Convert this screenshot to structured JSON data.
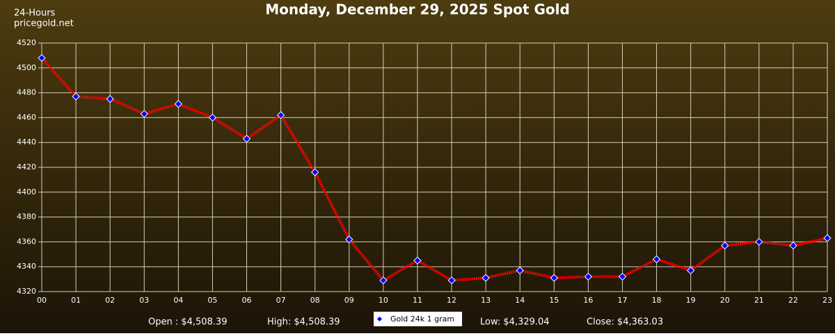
{
  "chart_data": {
    "type": "line",
    "title": "Monday, December 29, 2025 Spot Gold",
    "corner_text": [
      "24-Hours",
      "pricegold.net"
    ],
    "categories": [
      "00",
      "01",
      "02",
      "03",
      "04",
      "05",
      "06",
      "07",
      "08",
      "09",
      "10",
      "11",
      "12",
      "13",
      "14",
      "15",
      "16",
      "17",
      "18",
      "19",
      "20",
      "21",
      "22",
      "23"
    ],
    "series": [
      {
        "name": "Gold 24k 1 gram",
        "color": "#ff0000",
        "marker_color": "#0000ff",
        "values": [
          4508,
          4477,
          4475,
          4463,
          4471,
          4460,
          4443,
          4462,
          4416,
          4362,
          4329,
          4345,
          4329,
          4331,
          4337,
          4331,
          4332,
          4332,
          4346,
          4337,
          4357,
          4360,
          4357,
          4363
        ]
      }
    ],
    "ylim": [
      4320,
      4520
    ],
    "yticks": [
      4320,
      4340,
      4360,
      4380,
      4400,
      4420,
      4440,
      4460,
      4480,
      4500,
      4520
    ],
    "grid": true,
    "stats_left": [
      "Open : $4,508.39",
      "High: $4,508.39"
    ],
    "stats_right": [
      "Low: $4,329.04",
      "Close: $4,363.03"
    ]
  }
}
